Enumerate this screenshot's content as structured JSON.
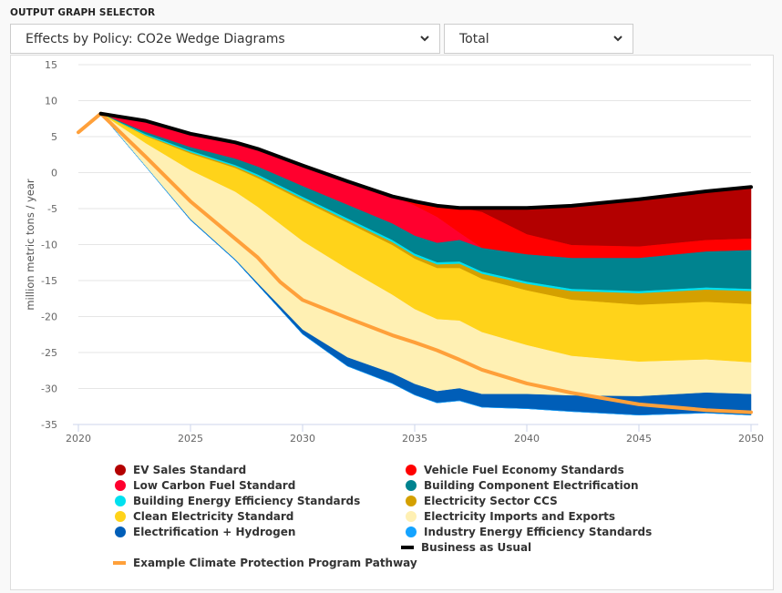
{
  "header": {
    "selector_label": "OUTPUT GRAPH SELECTOR",
    "graph_select": {
      "value": "Effects by Policy: CO2e Wedge Diagrams",
      "icon": "chevron-down-icon"
    },
    "scope_select": {
      "value": "Total",
      "icon": "chevron-down-icon"
    }
  },
  "chart_data": {
    "type": "area",
    "title": "",
    "xlabel": "",
    "ylabel": "million metric tons / year",
    "xlim": [
      2020,
      2050
    ],
    "ylim": [
      -35,
      15
    ],
    "x_ticks": [
      2020,
      2025,
      2030,
      2035,
      2040,
      2045,
      2050
    ],
    "y_ticks": [
      15,
      10,
      5,
      0,
      -5,
      -10,
      -15,
      -20,
      -25,
      -30,
      -35
    ],
    "grid": true,
    "legend_position": "bottom",
    "x": [
      2021,
      2023,
      2025,
      2027,
      2028,
      2030,
      2032,
      2034,
      2035,
      2036,
      2037,
      2038,
      2040,
      2042,
      2045,
      2048,
      2050
    ],
    "bau": [
      8.2,
      7.2,
      5.4,
      4.2,
      3.3,
      1.0,
      -1.2,
      -3.3,
      -4.0,
      -4.6,
      -4.9,
      -4.9,
      -4.9,
      -4.6,
      -3.7,
      -2.6,
      -2.0
    ],
    "pathway": {
      "name": "Example Climate Protection Program Pathway",
      "color": "#ffa03a",
      "x": [
        2020,
        2021,
        2023,
        2025,
        2027,
        2028,
        2029,
        2030,
        2032,
        2034,
        2035,
        2036,
        2037,
        2038,
        2040,
        2042,
        2045,
        2048,
        2050
      ],
      "values": [
        5.6,
        8.2,
        2.2,
        -4.0,
        -9.2,
        -11.8,
        -15.2,
        -17.7,
        -20.2,
        -22.6,
        -23.6,
        -24.7,
        -26.0,
        -27.4,
        -29.3,
        -30.6,
        -32.2,
        -33.0,
        -33.3
      ]
    },
    "series": [
      {
        "name": "EV Sales Standard",
        "color": "#b30000",
        "values": [
          0,
          0,
          0,
          0,
          0,
          0,
          0,
          0,
          0,
          0,
          0,
          0.6,
          3.7,
          5.5,
          6.6,
          6.8,
          7.2
        ]
      },
      {
        "name": "Vehicle Fuel Economy Standards",
        "color": "#ff0000",
        "values": [
          0,
          0,
          0,
          0,
          0,
          0,
          0,
          0,
          0.6,
          1.6,
          3.5,
          5.0,
          2.8,
          1.8,
          1.6,
          1.6,
          1.6
        ]
      },
      {
        "name": "Low Carbon Fuel Standard",
        "color": "#ff002e",
        "values": [
          0,
          1.6,
          1.9,
          2.3,
          2.5,
          2.9,
          3.3,
          3.8,
          4.2,
          3.6,
          1.0,
          0,
          0,
          0,
          0,
          0,
          0
        ]
      },
      {
        "name": "Building Component Electrification",
        "color": "#00838f",
        "values": [
          0,
          0.3,
          0.5,
          0.9,
          1.1,
          1.5,
          1.9,
          2.3,
          2.5,
          2.7,
          3.0,
          3.3,
          3.8,
          4.3,
          4.6,
          5.0,
          5.4
        ]
      },
      {
        "name": "Building Energy Efficiency Standards",
        "color": "#00e0ef",
        "values": [
          0,
          0.15,
          0.2,
          0.2,
          0.25,
          0.25,
          0.3,
          0.3,
          0.3,
          0.3,
          0.3,
          0.3,
          0.3,
          0.3,
          0.3,
          0.3,
          0.3
        ]
      },
      {
        "name": "Electricity Sector CCS",
        "color": "#d4a000",
        "values": [
          0,
          0.1,
          0.2,
          0.2,
          0.25,
          0.3,
          0.3,
          0.4,
          0.4,
          0.5,
          0.6,
          0.7,
          0.9,
          1.2,
          1.6,
          1.7,
          1.8
        ]
      },
      {
        "name": "Clean Electricity Standard",
        "color": "#ffd31a",
        "values": [
          0,
          1.0,
          2.3,
          3.3,
          4.0,
          5.6,
          6.4,
          6.9,
          7.0,
          7.1,
          7.3,
          7.4,
          7.6,
          7.8,
          7.9,
          8.0,
          8.1
        ]
      },
      {
        "name": "Electricity Imports and Exports",
        "color": "#fff0b3",
        "values": [
          0,
          3.2,
          6.8,
          9.4,
          10.6,
          12.3,
          12.3,
          10.9,
          10.4,
          10.0,
          9.4,
          8.6,
          6.8,
          5.5,
          4.8,
          4.6,
          4.4
        ]
      },
      {
        "name": "Electrification + Hydrogen",
        "color": "#005eb8",
        "values": [
          0,
          0,
          0.1,
          0.1,
          0.2,
          0.6,
          1.2,
          1.4,
          1.5,
          1.6,
          1.7,
          1.8,
          2.0,
          2.2,
          2.6,
          2.8,
          2.9
        ]
      },
      {
        "name": "Industry Energy Efficiency Standards",
        "color": "#14a3ff",
        "values": [
          0,
          0,
          0,
          0,
          0,
          0,
          0,
          0,
          0,
          0,
          0,
          0,
          0,
          0,
          0,
          0,
          0
        ]
      }
    ],
    "lines": [
      {
        "name": "Business as Usual",
        "color": "#000000"
      },
      {
        "name": "Example Climate Protection Program Pathway",
        "color": "#ffa03a"
      }
    ]
  },
  "legend": {
    "items": [
      {
        "label": "EV Sales Standard",
        "color": "#b30000",
        "type": "dot"
      },
      {
        "label": "Vehicle Fuel Economy Standards",
        "color": "#ff0000",
        "type": "dot"
      },
      {
        "label": "Low Carbon Fuel Standard",
        "color": "#ff002e",
        "type": "dot"
      },
      {
        "label": "Building Component Electrification",
        "color": "#00838f",
        "type": "dot"
      },
      {
        "label": "Building Energy Efficiency Standards",
        "color": "#00e0ef",
        "type": "dot"
      },
      {
        "label": "Electricity Sector CCS",
        "color": "#d4a000",
        "type": "dot"
      },
      {
        "label": "Clean Electricity Standard",
        "color": "#ffd31a",
        "type": "dot"
      },
      {
        "label": "Electricity Imports and Exports",
        "color": "#fff0b3",
        "type": "dot"
      },
      {
        "label": "Electrification + Hydrogen",
        "color": "#005eb8",
        "type": "dot"
      },
      {
        "label": "Industry Energy Efficiency Standards",
        "color": "#14a3ff",
        "type": "dot"
      },
      {
        "label": "Business as Usual",
        "color": "#000000",
        "type": "line"
      },
      {
        "label": "Example Climate Protection Program Pathway",
        "color": "#ffa03a",
        "type": "line"
      }
    ]
  }
}
